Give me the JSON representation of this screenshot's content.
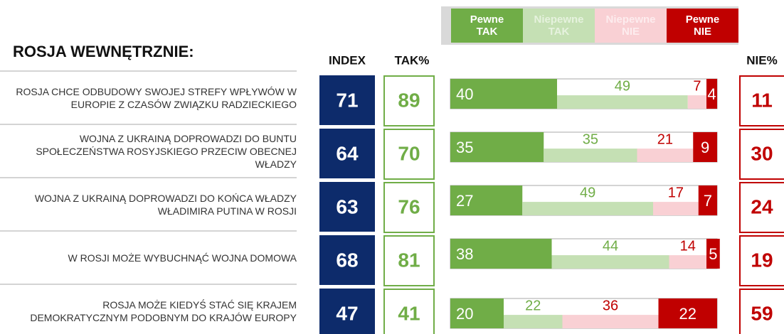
{
  "chart_data": {
    "type": "stacked-bar",
    "title": "ROSJA WEWNĘTRZNIE:",
    "categories": [
      "ROSJA CHCE ODBUDOWY SWOJEJ STREFY WPŁYWÓW W EUROPIE Z CZASÓW ZWIĄZKU RADZIECKIEGO",
      "WOJNA Z UKRAINĄ DOPROWADZI DO BUNTU SPOŁECZEŃSTWA ROSYJSKIEGO PRZECIW OBECNEJ WŁADZY",
      "WOJNA Z UKRAINĄ DOPROWADZI DO KOŃCA WŁADZY WŁADIMIRA PUTINA W ROSJI",
      "W ROSJI MOŻE WYBUCHNĄĆ WOJNA DOMOWA",
      "ROSJA MOŻE KIEDYŚ STAĆ SIĘ KRAJEM DEMOKRATYCZNYM PODOBNYM DO KRAJÓW EUROPY"
    ],
    "series": [
      {
        "name": "Pewne TAK",
        "color": "#70ad47",
        "values": [
          40,
          35,
          27,
          38,
          20
        ]
      },
      {
        "name": "Niepewne TAK",
        "color": "#c5e0b4",
        "values": [
          49,
          35,
          49,
          44,
          22
        ]
      },
      {
        "name": "Niepewne NIE",
        "color": "#f9d0d4",
        "values": [
          7,
          21,
          17,
          14,
          36
        ]
      },
      {
        "name": "Pewne NIE",
        "color": "#c00000",
        "values": [
          4,
          9,
          7,
          5,
          22
        ]
      }
    ],
    "columns": [
      {
        "name": "INDEX",
        "color": "#0d2b6b",
        "values": [
          71,
          64,
          63,
          68,
          47
        ]
      },
      {
        "name": "TAK%",
        "color": "#70ad47",
        "values": [
          89,
          70,
          76,
          81,
          41
        ]
      },
      {
        "name": "NIE%",
        "color": "#c00000",
        "values": [
          11,
          30,
          24,
          19,
          59
        ]
      }
    ],
    "xlim": [
      0,
      100
    ]
  }
}
